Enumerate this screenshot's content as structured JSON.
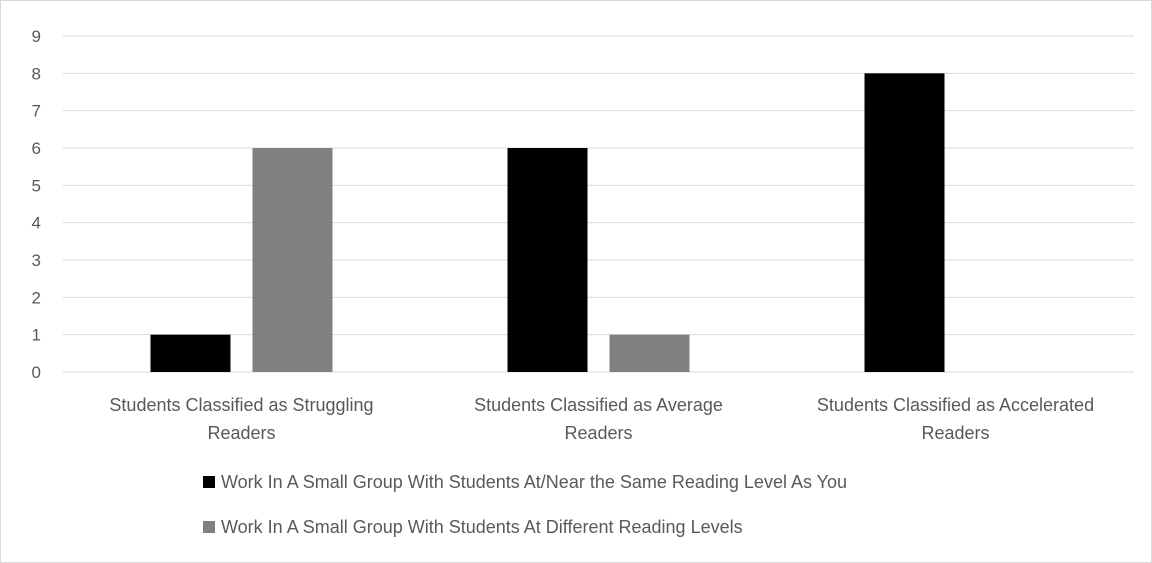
{
  "chart_data": {
    "type": "bar",
    "title": "",
    "xlabel": "",
    "ylabel": "",
    "ylim": [
      0,
      9
    ],
    "yticks": [
      0,
      1,
      2,
      3,
      4,
      5,
      6,
      7,
      8,
      9
    ],
    "grid": true,
    "legend_position": "bottom",
    "categories": [
      [
        "Students Classified as Struggling",
        "Readers"
      ],
      [
        "Students Classified as Average",
        "Readers"
      ],
      [
        "Students Classified as Accelerated",
        "Readers"
      ]
    ],
    "series": [
      {
        "name": "Work In A Small Group With Students At/Near the Same Reading Level As You",
        "color": "#000000",
        "values": [
          1,
          6,
          8
        ]
      },
      {
        "name": "Work In A Small Group With Students At Different Reading Levels",
        "color": "#808080",
        "values": [
          6,
          1,
          0
        ]
      }
    ]
  }
}
